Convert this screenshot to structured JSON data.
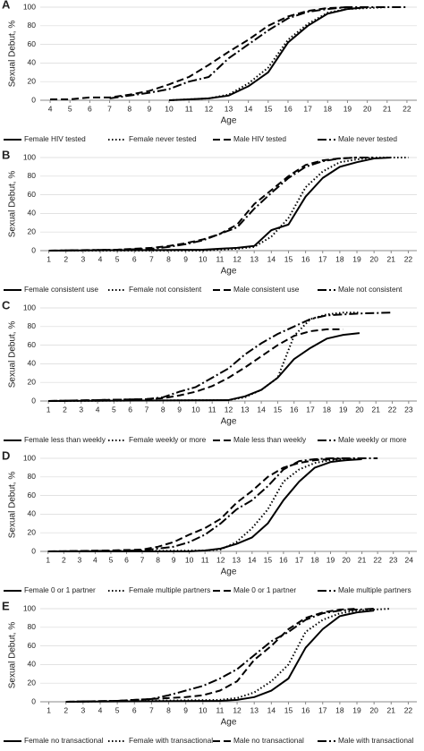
{
  "chart_data": [
    {
      "type": "line",
      "label": "A",
      "ylabel": "Sexual Debut, %",
      "xlabel": "Age",
      "xlim": [
        3.5,
        22.5
      ],
      "xticks": [
        4,
        5,
        6,
        7,
        8,
        9,
        10,
        11,
        12,
        13,
        14,
        15,
        16,
        17,
        18,
        19,
        20,
        21,
        22
      ],
      "ylim": [
        0,
        100
      ],
      "yticks": [
        0,
        20,
        40,
        60,
        80,
        100
      ],
      "grid": true,
      "series": [
        {
          "name": "Female  HIV tested",
          "color": "#000",
          "dash": "solid",
          "x": [
            10,
            11,
            12,
            13,
            14,
            15,
            16,
            17,
            18,
            19,
            20
          ],
          "values": [
            0,
            1,
            2,
            5,
            15,
            30,
            62,
            80,
            93,
            98,
            100
          ]
        },
        {
          "name": "Female never tested",
          "color": "#000",
          "dash": "dotted",
          "x": [
            10,
            11,
            12,
            13,
            14,
            15,
            16,
            17,
            18,
            19,
            20,
            21
          ],
          "values": [
            0,
            1,
            2,
            6,
            18,
            35,
            65,
            82,
            94,
            98,
            99,
            100
          ]
        },
        {
          "name": "Male HIV tested",
          "color": "#000",
          "dash": "dashed",
          "x": [
            4,
            5,
            6,
            7,
            8,
            9,
            10,
            11,
            12,
            13,
            14,
            15,
            16,
            17,
            18,
            19
          ],
          "values": [
            1,
            1,
            3,
            3,
            6,
            10,
            17,
            25,
            38,
            52,
            65,
            80,
            90,
            96,
            99,
            100
          ]
        },
        {
          "name": "Male never tested",
          "color": "#000",
          "dash": "dashdot",
          "x": [
            7,
            8,
            9,
            10,
            11,
            12,
            13,
            14,
            15,
            16,
            17,
            18,
            19,
            20,
            22
          ],
          "values": [
            2,
            5,
            8,
            12,
            20,
            25,
            45,
            60,
            75,
            88,
            95,
            98,
            100,
            100,
            100
          ]
        }
      ]
    },
    {
      "type": "line",
      "label": "B",
      "ylabel": "Sexual Debut, %",
      "xlabel": "Age",
      "xlim": [
        0.5,
        22.5
      ],
      "xticks": [
        1,
        2,
        3,
        4,
        5,
        6,
        7,
        8,
        9,
        10,
        11,
        12,
        13,
        14,
        15,
        16,
        17,
        18,
        19,
        20,
        21,
        22
      ],
      "ylim": [
        0,
        100
      ],
      "yticks": [
        0,
        20,
        40,
        60,
        80,
        100
      ],
      "grid": true,
      "series": [
        {
          "name": "Female consistent use",
          "color": "#000",
          "dash": "solid",
          "x": [
            1,
            10,
            11,
            12,
            13,
            14,
            15,
            16,
            17,
            18,
            19,
            20,
            21
          ],
          "values": [
            0,
            1,
            2,
            3,
            5,
            22,
            28,
            58,
            78,
            90,
            95,
            99,
            100
          ]
        },
        {
          "name": "Female not consistent",
          "color": "#000",
          "dash": "dotted",
          "x": [
            1,
            10,
            11,
            12,
            13,
            14,
            15,
            16,
            17,
            18,
            19,
            20,
            22
          ],
          "values": [
            0,
            0,
            1,
            2,
            4,
            15,
            35,
            68,
            85,
            95,
            98,
            100,
            100
          ]
        },
        {
          "name": "Male consistent use",
          "color": "#000",
          "dash": "dashed",
          "x": [
            1,
            5,
            7,
            8,
            9,
            10,
            11,
            12,
            13,
            14,
            15,
            16,
            17,
            18,
            19
          ],
          "values": [
            0,
            1,
            3,
            5,
            8,
            12,
            18,
            28,
            50,
            65,
            80,
            92,
            97,
            99,
            100
          ]
        },
        {
          "name": "Male not consistent",
          "color": "#000",
          "dash": "dashdot",
          "x": [
            1,
            5,
            7,
            8,
            9,
            10,
            11,
            12,
            13,
            14,
            15,
            16,
            17,
            18,
            19,
            20
          ],
          "values": [
            0,
            1,
            2,
            4,
            7,
            11,
            18,
            25,
            45,
            62,
            78,
            90,
            96,
            99,
            100,
            100
          ]
        }
      ]
    },
    {
      "type": "line",
      "label": "C",
      "ylabel": "Sexual Debut, %",
      "xlabel": "Age",
      "xlim": [
        0.5,
        23.5
      ],
      "xticks": [
        1,
        2,
        3,
        4,
        5,
        6,
        7,
        8,
        9,
        10,
        11,
        12,
        13,
        14,
        15,
        16,
        17,
        18,
        19,
        20,
        21,
        22,
        23
      ],
      "ylim": [
        0,
        100
      ],
      "yticks": [
        0,
        20,
        40,
        60,
        80,
        100
      ],
      "grid": true,
      "series": [
        {
          "name": "Female less than weekly",
          "color": "#000",
          "dash": "solid",
          "x": [
            1,
            12,
            13,
            14,
            15,
            16,
            17,
            18,
            19,
            20
          ],
          "values": [
            0,
            1,
            5,
            12,
            25,
            45,
            57,
            67,
            71,
            73
          ]
        },
        {
          "name": "Female weekly or more",
          "color": "#000",
          "dash": "dotted",
          "x": [
            1,
            12,
            13,
            14,
            15,
            16,
            17,
            18,
            19,
            20
          ],
          "values": [
            0,
            1,
            4,
            12,
            25,
            70,
            88,
            93,
            95,
            95
          ]
        },
        {
          "name": "Male less than weekly",
          "color": "#000",
          "dash": "dashed",
          "x": [
            1,
            7,
            8,
            9,
            10,
            11,
            12,
            13,
            14,
            15,
            16,
            17,
            18,
            19
          ],
          "values": [
            0,
            2,
            3,
            6,
            10,
            16,
            25,
            36,
            48,
            60,
            70,
            75,
            77,
            77
          ]
        },
        {
          "name": "Male weekly or more",
          "color": "#000",
          "dash": "dashdot",
          "x": [
            1,
            7,
            8,
            9,
            10,
            11,
            12,
            13,
            14,
            15,
            16,
            17,
            18,
            19,
            20,
            22
          ],
          "values": [
            0,
            2,
            4,
            10,
            15,
            25,
            35,
            50,
            62,
            72,
            80,
            88,
            92,
            93,
            94,
            95
          ]
        }
      ]
    },
    {
      "type": "line",
      "label": "D",
      "ylabel": "Sexual Debut, %",
      "xlabel": "Age",
      "xlim": [
        0.5,
        24.5
      ],
      "xticks": [
        1,
        2,
        3,
        4,
        5,
        6,
        7,
        8,
        9,
        10,
        11,
        12,
        13,
        14,
        15,
        16,
        17,
        18,
        19,
        20,
        21,
        22,
        23,
        24
      ],
      "ylim": [
        0,
        100
      ],
      "yticks": [
        0,
        20,
        40,
        60,
        80,
        100
      ],
      "grid": true,
      "series": [
        {
          "name": "Female 0 or 1 partner",
          "color": "#000",
          "dash": "solid",
          "x": [
            1,
            10,
            11,
            12,
            13,
            14,
            15,
            16,
            17,
            18,
            19,
            20,
            21
          ],
          "values": [
            0,
            0,
            1,
            3,
            8,
            15,
            30,
            55,
            75,
            90,
            96,
            98,
            99
          ]
        },
        {
          "name": "Female multiple partners",
          "color": "#000",
          "dash": "dotted",
          "x": [
            1,
            11,
            12,
            13,
            14,
            15,
            16,
            17,
            18,
            19,
            20,
            21
          ],
          "values": [
            0,
            1,
            2,
            10,
            25,
            45,
            75,
            88,
            95,
            98,
            99,
            100
          ]
        },
        {
          "name": "Male 0 or 1 partner",
          "color": "#000",
          "dash": "dashed",
          "x": [
            1,
            5,
            7,
            8,
            9,
            10,
            11,
            12,
            13,
            14,
            15,
            16,
            17,
            18,
            19,
            20
          ],
          "values": [
            0,
            1,
            2,
            5,
            10,
            18,
            25,
            35,
            52,
            65,
            80,
            90,
            95,
            98,
            99,
            100
          ]
        },
        {
          "name": "Male multiple partners",
          "color": "#000",
          "dash": "dashdot",
          "x": [
            1,
            7,
            8,
            9,
            10,
            11,
            12,
            13,
            14,
            15,
            16,
            17,
            18,
            19,
            22
          ],
          "values": [
            0,
            1,
            3,
            5,
            10,
            18,
            30,
            45,
            55,
            70,
            88,
            97,
            99,
            100,
            100
          ]
        }
      ]
    },
    {
      "type": "line",
      "label": "E",
      "ylabel": "Sexual Debut, %",
      "xlabel": "Age",
      "xlim": [
        0.5,
        22.5
      ],
      "xticks": [
        1,
        2,
        3,
        4,
        5,
        6,
        7,
        8,
        9,
        10,
        11,
        12,
        13,
        14,
        15,
        16,
        17,
        18,
        19,
        20,
        21,
        22
      ],
      "ylim": [
        0,
        100
      ],
      "yticks": [
        0,
        20,
        40,
        60,
        80,
        100
      ],
      "grid": true,
      "series": [
        {
          "name": "Female no transactional",
          "color": "#000",
          "dash": "solid",
          "x": [
            2,
            11,
            12,
            13,
            14,
            15,
            16,
            17,
            18,
            19,
            20
          ],
          "values": [
            0,
            1,
            2,
            5,
            12,
            25,
            58,
            78,
            92,
            96,
            98
          ]
        },
        {
          "name": "Female with transactional",
          "color": "#000",
          "dash": "dotted",
          "x": [
            2,
            11,
            12,
            13,
            14,
            15,
            16,
            17,
            18,
            19,
            20,
            21
          ],
          "values": [
            0,
            2,
            4,
            10,
            22,
            40,
            75,
            88,
            95,
            98,
            99,
            100
          ]
        },
        {
          "name": "Male no transactional",
          "color": "#000",
          "dash": "dashed",
          "x": [
            2,
            5,
            8,
            9,
            10,
            11,
            12,
            13,
            14,
            15,
            16,
            17,
            18,
            19
          ],
          "values": [
            0,
            1,
            4,
            5,
            7,
            12,
            22,
            45,
            60,
            78,
            90,
            96,
            99,
            100
          ]
        },
        {
          "name": "Male with transactional",
          "color": "#000",
          "dash": "dashdot",
          "x": [
            2,
            5,
            7,
            8,
            9,
            10,
            11,
            12,
            13,
            14,
            15,
            16,
            17,
            18,
            19,
            20
          ],
          "values": [
            0,
            1,
            3,
            7,
            12,
            17,
            25,
            35,
            50,
            65,
            75,
            88,
            95,
            98,
            99,
            100
          ]
        }
      ]
    }
  ]
}
